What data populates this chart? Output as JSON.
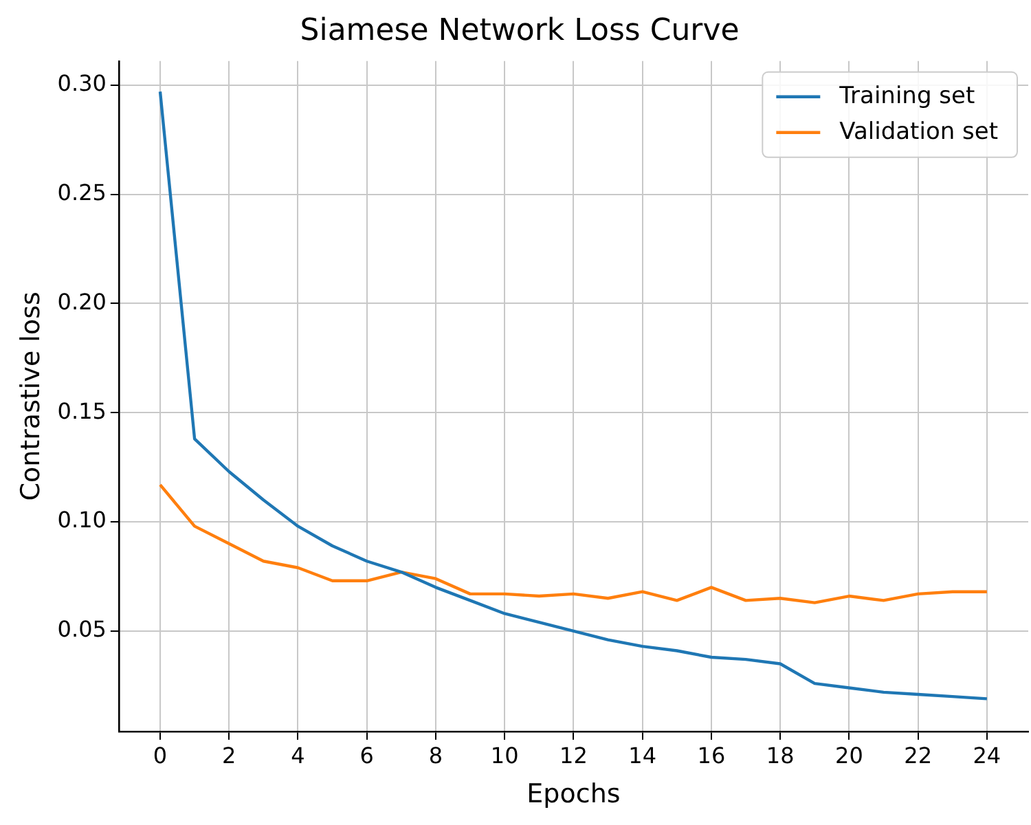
{
  "chart_data": {
    "type": "line",
    "title": "Siamese Network Loss Curve",
    "xlabel": "Epochs",
    "ylabel": "Contrastive loss",
    "x": [
      0,
      1,
      2,
      3,
      4,
      5,
      6,
      7,
      8,
      9,
      10,
      11,
      12,
      13,
      14,
      15,
      16,
      17,
      18,
      19,
      20,
      21,
      22,
      23,
      24
    ],
    "series": [
      {
        "name": "Training set",
        "color": "#1f77b4",
        "values": [
          0.297,
          0.138,
          0.123,
          0.11,
          0.098,
          0.089,
          0.082,
          0.077,
          0.07,
          0.064,
          0.058,
          0.054,
          0.05,
          0.046,
          0.043,
          0.041,
          0.038,
          0.037,
          0.035,
          0.026,
          0.024,
          0.022,
          0.021,
          0.02,
          0.019
        ]
      },
      {
        "name": "Validation set",
        "color": "#ff7f0e",
        "values": [
          0.117,
          0.098,
          0.09,
          0.082,
          0.079,
          0.073,
          0.073,
          0.077,
          0.074,
          0.067,
          0.067,
          0.066,
          0.067,
          0.065,
          0.068,
          0.064,
          0.07,
          0.064,
          0.065,
          0.063,
          0.066,
          0.064,
          0.067,
          0.068,
          0.068
        ]
      }
    ],
    "xlim": [
      -1.2,
      25.2
    ],
    "xticks": [
      0,
      2,
      4,
      6,
      8,
      10,
      12,
      14,
      16,
      18,
      20,
      22,
      24
    ],
    "ylim": [
      0.004,
      0.311
    ],
    "yticks": [
      0.05,
      {
        "value": 0.1,
        "label": "0.10"
      },
      0.15,
      {
        "value": 0.2,
        "label": "0.20"
      },
      0.25,
      {
        "value": 0.3,
        "label": "0.30"
      }
    ],
    "grid": true,
    "legend": "top right",
    "marker": "none",
    "line_style": "solid"
  }
}
